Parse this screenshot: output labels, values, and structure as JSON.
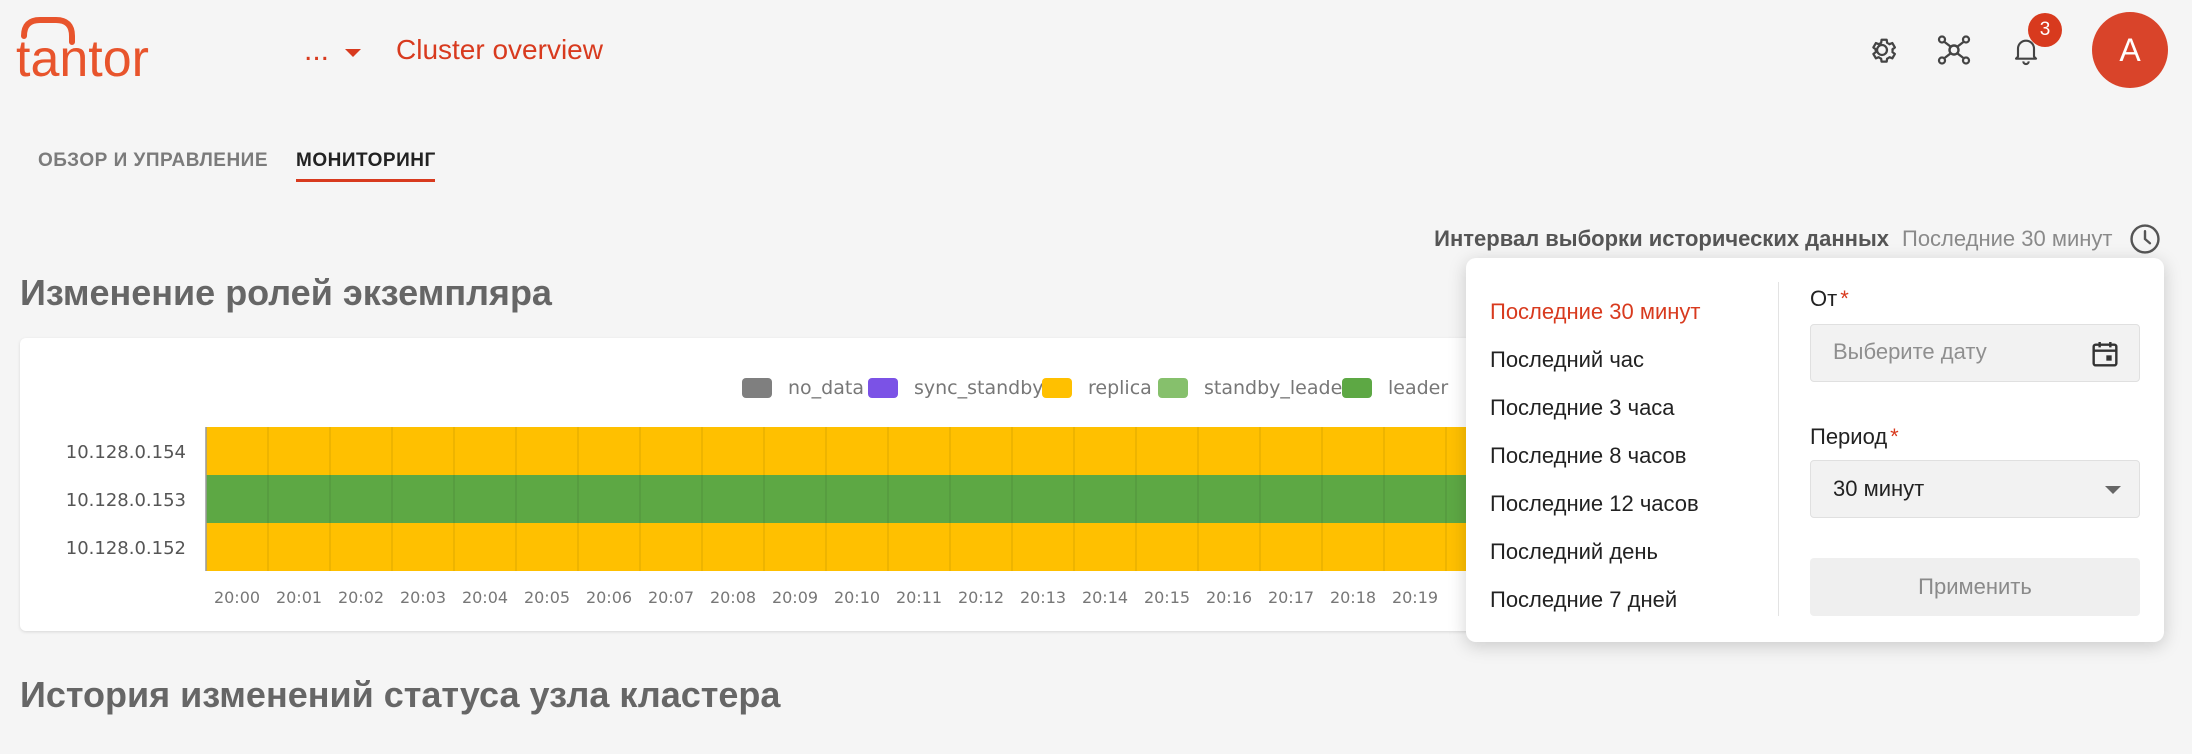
{
  "app": {
    "logo_text": "tantor",
    "cluster_menu_label": "...",
    "page_title": "Cluster overview"
  },
  "header": {
    "notifications_count": "3",
    "avatar_initial": "A"
  },
  "tabs": [
    {
      "label": "ОБЗОР И УПРАВЛЕНИЕ",
      "active": false
    },
    {
      "label": "МОНИТОРИНГ",
      "active": true
    }
  ],
  "interval": {
    "label": "Интервал выборки исторических данных",
    "value": "Последние 30 минут"
  },
  "sections": {
    "roles_title": "Изменение ролей экземпляра",
    "history_title": "История изменений статуса узла кластера"
  },
  "chart_data": {
    "type": "heatmap",
    "legend": [
      {
        "name": "no_data",
        "color": "#7f7f7f"
      },
      {
        "name": "sync_standby",
        "color": "#7b52e6"
      },
      {
        "name": "replica",
        "color": "#ffc000"
      },
      {
        "name": "standby_leader",
        "color": "#86c06c"
      },
      {
        "name": "leader",
        "color": "#5da844"
      }
    ],
    "y_categories": [
      "10.128.0.154",
      "10.128.0.153",
      "10.128.0.152"
    ],
    "x_categories": [
      "20:00",
      "20:01",
      "20:02",
      "20:03",
      "20:04",
      "20:05",
      "20:06",
      "20:07",
      "20:08",
      "20:09",
      "20:10",
      "20:11",
      "20:12",
      "20:13",
      "20:14",
      "20:15",
      "20:16",
      "20:17",
      "20:18",
      "20:19"
    ],
    "series": [
      {
        "host": "10.128.0.154",
        "role": "replica"
      },
      {
        "host": "10.128.0.153",
        "role": "leader"
      },
      {
        "host": "10.128.0.152",
        "role": "replica"
      }
    ]
  },
  "popup": {
    "presets": [
      "Последние 30 минут",
      "Последний час",
      "Последние 3 часа",
      "Последние 8 часов",
      "Последние 12 часов",
      "Последний день",
      "Последние 7 дней"
    ],
    "selected_preset": "Последние 30 минут",
    "from_label": "От",
    "from_placeholder": "Выберите дату",
    "period_label": "Период",
    "period_value": "30 минут",
    "required_mark": "*",
    "apply_label": "Применить"
  },
  "colors": {
    "accent": "#d83a1e",
    "logo": "#e8542c",
    "grid": "#5a8a3a"
  }
}
